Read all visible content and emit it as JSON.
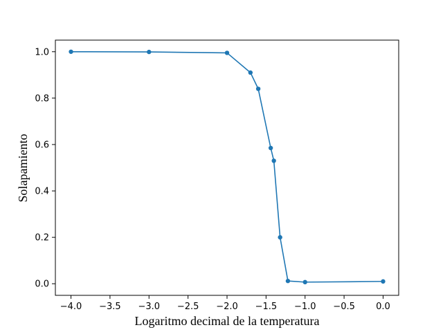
{
  "chart_data": {
    "type": "line",
    "title": "",
    "xlabel": "Logaritmo decimal de la temperatura",
    "ylabel": "Solapamiento",
    "xlim": [
      -4.2,
      0.2
    ],
    "ylim": [
      -0.05,
      1.05
    ],
    "x_ticks": [
      -4.0,
      -3.5,
      -3.0,
      -2.5,
      -2.0,
      -1.5,
      -1.0,
      -0.5,
      0.0
    ],
    "x_tick_labels": [
      "−4.0",
      "−3.5",
      "−3.0",
      "−2.5",
      "−2.0",
      "−1.5",
      "−1.0",
      "−0.5",
      "0.0"
    ],
    "y_ticks": [
      0.0,
      0.2,
      0.4,
      0.6,
      0.8,
      1.0
    ],
    "y_tick_labels": [
      "0.0",
      "0.2",
      "0.4",
      "0.6",
      "0.8",
      "1.0"
    ],
    "grid": false,
    "series": [
      {
        "color": "#1f77b4",
        "marker": "circle",
        "x": [
          -4.0,
          -3.0,
          -2.0,
          -1.7,
          -1.6,
          -1.44,
          -1.4,
          -1.32,
          -1.22,
          -1.0,
          0.0
        ],
        "y": [
          1.0,
          0.999,
          0.995,
          0.91,
          0.84,
          0.585,
          0.53,
          0.2,
          0.012,
          0.007,
          0.01
        ]
      }
    ]
  }
}
